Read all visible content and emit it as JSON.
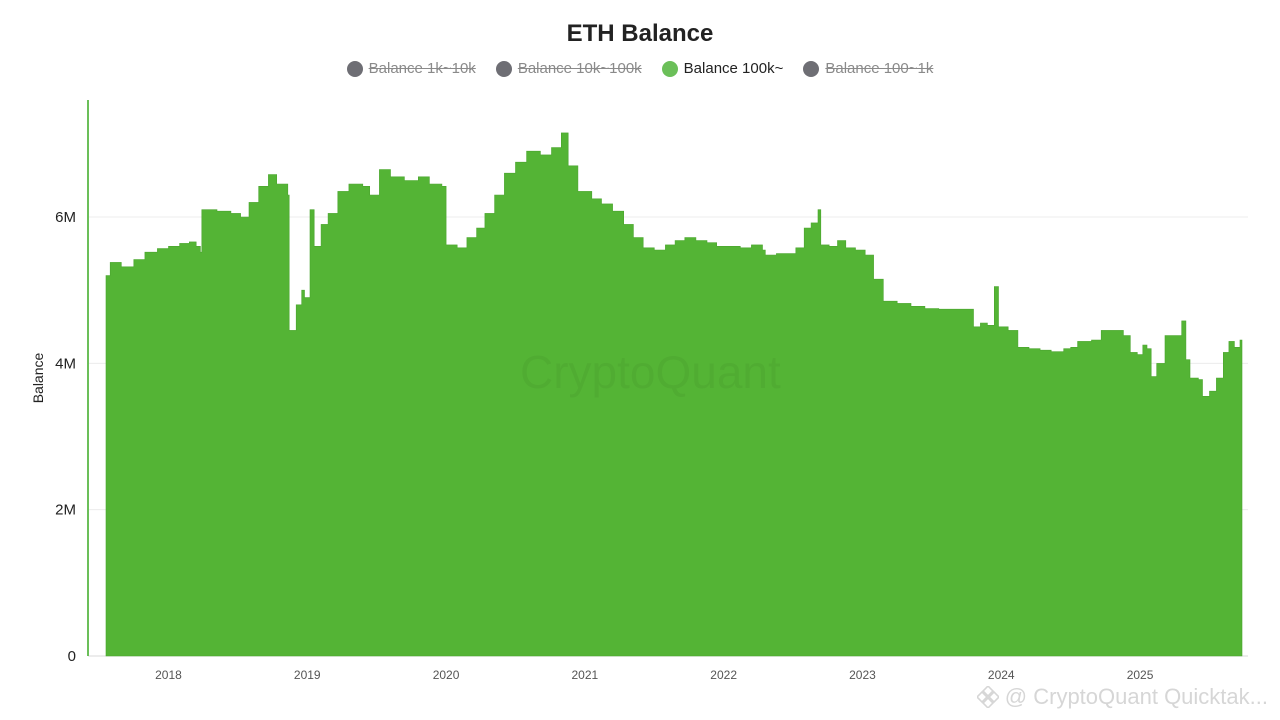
{
  "chart_data": {
    "type": "bar",
    "title": "ETH Balance",
    "ylabel": "Balance",
    "ylim": [
      0,
      7.6
    ],
    "y_unit": "M",
    "y_ticks": [
      0,
      2,
      4,
      6
    ],
    "y_tick_labels": [
      "0",
      "2M",
      "4M",
      "6M"
    ],
    "x_tick_labels": [
      "2018",
      "2019",
      "2020",
      "2021",
      "2022",
      "2023",
      "2024",
      "2025"
    ],
    "x_range": [
      2017.55,
      2025.72
    ],
    "grid": "horizontal",
    "legend_placement": "top-center",
    "series": [
      {
        "name": "Balance 100k~",
        "color": "#54b435",
        "visible": true,
        "points": [
          [
            2017.55,
            5.2
          ],
          [
            2017.58,
            5.38
          ],
          [
            2017.66,
            5.32
          ],
          [
            2017.75,
            5.42
          ],
          [
            2017.83,
            5.52
          ],
          [
            2017.92,
            5.57
          ],
          [
            2018.0,
            5.6
          ],
          [
            2018.08,
            5.64
          ],
          [
            2018.15,
            5.66
          ],
          [
            2018.2,
            5.6
          ],
          [
            2018.23,
            5.52
          ],
          [
            2018.24,
            6.1
          ],
          [
            2018.35,
            6.08
          ],
          [
            2018.45,
            6.05
          ],
          [
            2018.52,
            6.0
          ],
          [
            2018.58,
            6.2
          ],
          [
            2018.65,
            6.42
          ],
          [
            2018.72,
            6.58
          ],
          [
            2018.78,
            6.45
          ],
          [
            2018.86,
            6.3
          ],
          [
            2018.87,
            4.45
          ],
          [
            2018.92,
            4.8
          ],
          [
            2018.96,
            5.0
          ],
          [
            2018.98,
            4.9
          ],
          [
            2019.02,
            6.1
          ],
          [
            2019.05,
            5.6
          ],
          [
            2019.1,
            5.9
          ],
          [
            2019.15,
            6.05
          ],
          [
            2019.22,
            6.35
          ],
          [
            2019.3,
            6.45
          ],
          [
            2019.4,
            6.42
          ],
          [
            2019.45,
            6.3
          ],
          [
            2019.52,
            6.65
          ],
          [
            2019.6,
            6.55
          ],
          [
            2019.7,
            6.5
          ],
          [
            2019.8,
            6.55
          ],
          [
            2019.88,
            6.45
          ],
          [
            2019.97,
            6.42
          ],
          [
            2020.0,
            5.62
          ],
          [
            2020.08,
            5.58
          ],
          [
            2020.15,
            5.72
          ],
          [
            2020.22,
            5.85
          ],
          [
            2020.28,
            6.05
          ],
          [
            2020.35,
            6.3
          ],
          [
            2020.42,
            6.6
          ],
          [
            2020.5,
            6.75
          ],
          [
            2020.58,
            6.9
          ],
          [
            2020.68,
            6.85
          ],
          [
            2020.76,
            6.95
          ],
          [
            2020.83,
            7.15
          ],
          [
            2020.88,
            6.7
          ],
          [
            2020.95,
            6.35
          ],
          [
            2021.05,
            6.25
          ],
          [
            2021.12,
            6.18
          ],
          [
            2021.2,
            6.08
          ],
          [
            2021.28,
            5.9
          ],
          [
            2021.35,
            5.72
          ],
          [
            2021.42,
            5.58
          ],
          [
            2021.5,
            5.55
          ],
          [
            2021.58,
            5.62
          ],
          [
            2021.65,
            5.68
          ],
          [
            2021.72,
            5.72
          ],
          [
            2021.8,
            5.68
          ],
          [
            2021.88,
            5.65
          ],
          [
            2021.95,
            5.6
          ],
          [
            2022.05,
            5.6
          ],
          [
            2022.12,
            5.58
          ],
          [
            2022.2,
            5.62
          ],
          [
            2022.28,
            5.55
          ],
          [
            2022.3,
            5.48
          ],
          [
            2022.38,
            5.5
          ],
          [
            2022.45,
            5.5
          ],
          [
            2022.52,
            5.58
          ],
          [
            2022.58,
            5.85
          ],
          [
            2022.63,
            5.92
          ],
          [
            2022.68,
            6.1
          ],
          [
            2022.7,
            5.62
          ],
          [
            2022.76,
            5.6
          ],
          [
            2022.82,
            5.68
          ],
          [
            2022.88,
            5.58
          ],
          [
            2022.95,
            5.55
          ],
          [
            2023.02,
            5.48
          ],
          [
            2023.08,
            5.15
          ],
          [
            2023.15,
            4.85
          ],
          [
            2023.25,
            4.82
          ],
          [
            2023.35,
            4.78
          ],
          [
            2023.45,
            4.75
          ],
          [
            2023.55,
            4.74
          ],
          [
            2023.65,
            4.74
          ],
          [
            2023.75,
            4.74
          ],
          [
            2023.8,
            4.5
          ],
          [
            2023.85,
            4.55
          ],
          [
            2023.9,
            4.52
          ],
          [
            2023.95,
            5.05
          ],
          [
            2023.98,
            4.5
          ],
          [
            2024.05,
            4.45
          ],
          [
            2024.12,
            4.22
          ],
          [
            2024.2,
            4.2
          ],
          [
            2024.28,
            4.18
          ],
          [
            2024.36,
            4.16
          ],
          [
            2024.45,
            4.2
          ],
          [
            2024.5,
            4.22
          ],
          [
            2024.55,
            4.3
          ],
          [
            2024.65,
            4.32
          ],
          [
            2024.72,
            4.45
          ],
          [
            2024.8,
            4.45
          ],
          [
            2024.88,
            4.38
          ],
          [
            2024.93,
            4.15
          ],
          [
            2024.98,
            4.12
          ],
          [
            2025.02,
            4.25
          ],
          [
            2025.05,
            4.2
          ],
          [
            2025.08,
            3.82
          ],
          [
            2025.12,
            4.0
          ],
          [
            2025.18,
            4.38
          ],
          [
            2025.25,
            4.38
          ],
          [
            2025.3,
            4.58
          ],
          [
            2025.33,
            4.05
          ],
          [
            2025.36,
            3.8
          ],
          [
            2025.42,
            3.78
          ],
          [
            2025.45,
            3.55
          ],
          [
            2025.5,
            3.62
          ],
          [
            2025.55,
            3.8
          ],
          [
            2025.6,
            4.15
          ],
          [
            2025.64,
            4.3
          ],
          [
            2025.68,
            4.22
          ],
          [
            2025.72,
            4.32
          ]
        ]
      }
    ],
    "hidden_series": [
      {
        "name": "Balance 1k~10k",
        "color": "#6e6e74"
      },
      {
        "name": "Balance 10k~100k",
        "color": "#6e6e74"
      },
      {
        "name": "Balance 100~1k",
        "color": "#6e6e74"
      }
    ]
  },
  "legend": [
    {
      "label": "Balance 1k~10k",
      "hidden": true,
      "color": "#6e6e74"
    },
    {
      "label": "Balance 10k~100k",
      "hidden": true,
      "color": "#6e6e74"
    },
    {
      "label": "Balance 100k~",
      "hidden": false,
      "color": "#6bbf59"
    },
    {
      "label": "Balance 100~1k",
      "hidden": true,
      "color": "#6e6e74"
    }
  ],
  "watermark": "CryptoQuant",
  "credit": "@ CryptoQuant Quicktak..."
}
